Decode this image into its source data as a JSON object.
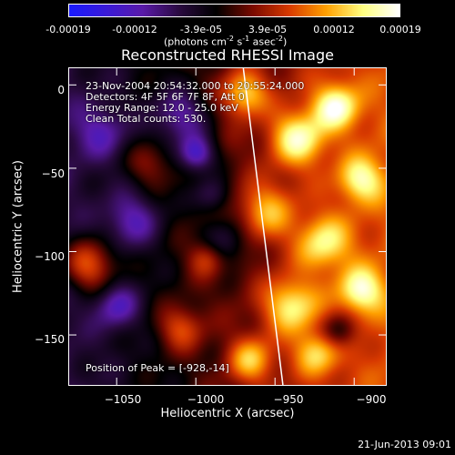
{
  "colorbar": {
    "ticks": [
      "-0.00019",
      "-0.00012",
      "-3.9e-05",
      "3.9e-05",
      "0.00012",
      "0.00019"
    ],
    "unit_prefix": "(photons cm",
    "unit_exp1": "-2",
    "unit_mid": " s",
    "unit_exp2": "-1",
    "unit_mid2": " asec",
    "unit_exp3": "-2",
    "unit_suffix": ")",
    "colors": [
      "#1a1aff",
      "#3a1ad8",
      "#5a1aa8",
      "#2a0a40",
      "#000000",
      "#7a0a00",
      "#d83a00",
      "#ffa000",
      "#ffff80",
      "#ffffff"
    ]
  },
  "chart_data": {
    "type": "heatmap",
    "title": "Reconstructed RHESSI Image",
    "xlabel": "Heliocentric X (arcsec)",
    "ylabel": "Heliocentric Y (arcsec)",
    "xlim": [
      -1080,
      -880
    ],
    "ylim": [
      -180,
      10
    ],
    "x_ticks": [
      -1050,
      -1000,
      -950,
      -900
    ],
    "y_ticks": [
      0,
      -50,
      -100,
      -150
    ],
    "x_tick_labels": [
      "−1050",
      "−1000",
      "−950",
      "−900"
    ],
    "y_tick_labels": [
      "0",
      "−50",
      "−100",
      "−150"
    ],
    "limb_line": [
      [
        -970,
        10
      ],
      [
        -945,
        -180
      ]
    ],
    "annotations": [
      "23-Nov-2004 20:54:32.000 to 20:55:24.000",
      "Detectors: 4F 5F 6F 7F 8F, Att 0",
      "Energy Range: 12.0 - 25.0 keV",
      "Clean     Total counts: 530.",
      "Position of Peak = [-928,-14]"
    ],
    "color_range": [
      -0.00019,
      0.00019
    ],
    "grid": false
  },
  "footer": "21-Jun-2013 09:01"
}
